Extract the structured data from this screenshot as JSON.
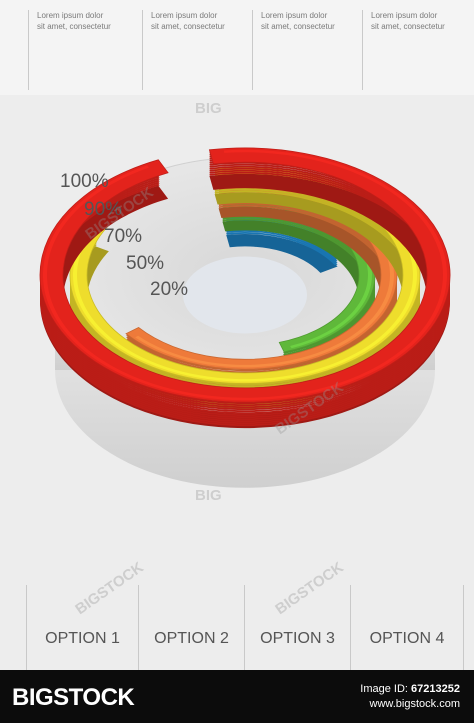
{
  "header": {
    "columns": [
      {
        "line1": "Lorem ipsum dolor",
        "line2": "sit amet, consectetur"
      },
      {
        "line1": "Lorem ipsum dolor",
        "line2": "sit amet, consectetur"
      },
      {
        "line1": "Lorem ipsum dolor",
        "line2": "sit amet, consectetur"
      },
      {
        "line1": "Lorem ipsum dolor",
        "line2": "sit amet, consectetur"
      }
    ]
  },
  "chart_data": {
    "type": "radial-bar",
    "tick_labels": [
      "100%",
      "90%",
      "70%",
      "50%",
      "20%"
    ],
    "series": [
      {
        "value": 100,
        "color": "#e3231c"
      },
      {
        "value": 90,
        "color": "#eedd2c"
      },
      {
        "value": 70,
        "color": "#ee7a3a"
      },
      {
        "value": 50,
        "color": "#5fb83a"
      },
      {
        "value": 20,
        "color": "#1f8fd8"
      }
    ]
  },
  "options": [
    "OPTION 1",
    "OPTION 2",
    "OPTION 3",
    "OPTION 4"
  ],
  "footer": {
    "logo": "BIGSTOCK",
    "image_id_label": "Image ID:",
    "image_id": "67213252",
    "site": "www.bigstock.com"
  },
  "watermarks": [
    "BIG",
    "BIGSTOCK"
  ]
}
